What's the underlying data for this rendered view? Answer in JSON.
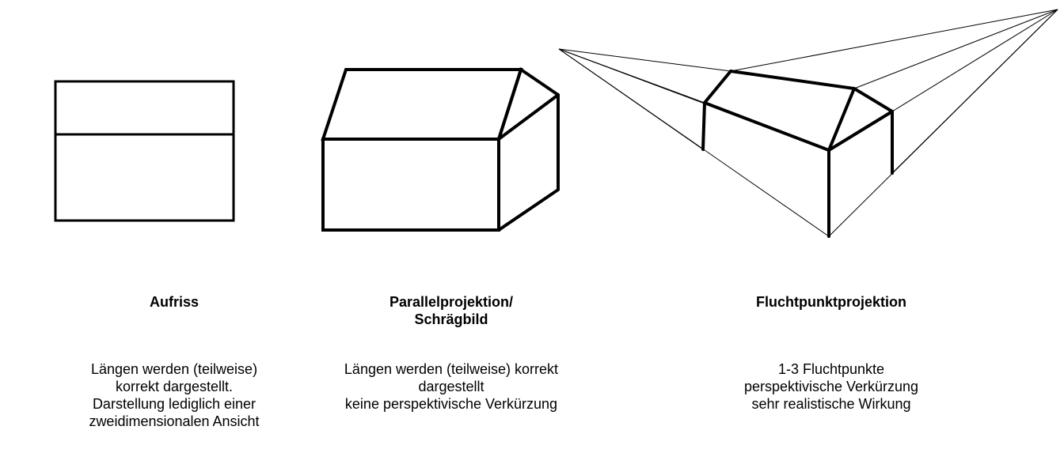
{
  "columns": [
    {
      "id": "aufriss",
      "title_lines": [
        "Aufriss"
      ],
      "description_lines": [
        "Längen werden (teilweise)",
        "korrekt dargestellt.",
        "Darstellung lediglich einer",
        "zweidimensionalen Ansicht"
      ]
    },
    {
      "id": "parallel",
      "title_lines": [
        "Parallelprojektion/",
        "Schrägbild"
      ],
      "description_lines": [
        "Längen werden (teilweise) korrekt",
        "dargestellt",
        "keine perspektivische Verkürzung"
      ]
    },
    {
      "id": "flucht",
      "title_lines": [
        "Fluchtpunktprojektion"
      ],
      "description_lines": [
        "1-3 Fluchtpunkte",
        "perspektivische Verkürzung",
        "sehr realistische Wirkung"
      ]
    }
  ],
  "colors": {
    "line": "#000000",
    "background": "#ffffff"
  }
}
